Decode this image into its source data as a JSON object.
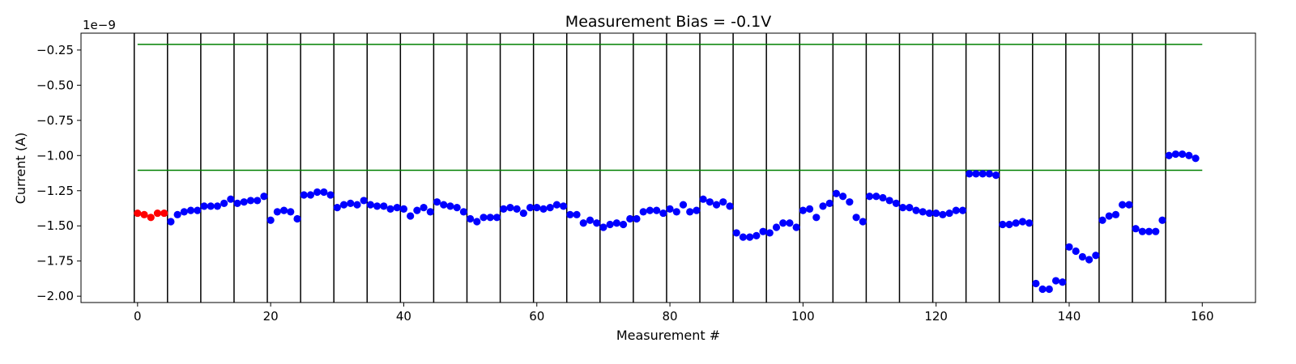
{
  "chart_data": {
    "type": "scatter",
    "title": "Measurement Bias = -0.1V",
    "xlabel": "Measurement #",
    "ylabel": "Current (A)",
    "y_offset_label": "1e−9",
    "xlim": [
      -8.5,
      168
    ],
    "ylim": [
      -2.045,
      -0.13
    ],
    "x_ticks": [
      0,
      20,
      40,
      60,
      80,
      100,
      120,
      140,
      160
    ],
    "x_tick_labels": [
      "0",
      "20",
      "40",
      "60",
      "80",
      "100",
      "120",
      "140",
      "160"
    ],
    "y_ticks": [
      -0.25,
      -0.5,
      -0.75,
      -1.0,
      -1.25,
      -1.5,
      -1.75,
      -2.0
    ],
    "y_tick_labels": [
      "−0.25",
      "−0.50",
      "−0.75",
      "−1.00",
      "−1.25",
      "−1.50",
      "−1.75",
      "−2.00"
    ],
    "grid": false,
    "reference_lines": [
      {
        "y": -0.21,
        "x_range": [
          0,
          160
        ],
        "color": "#008000"
      },
      {
        "y": -1.105,
        "x_range": [
          0,
          160
        ],
        "color": "#008000"
      }
    ],
    "vertical_lines": {
      "x": [
        -0.5,
        4.5,
        9.5,
        14.5,
        19.5,
        24.5,
        29.5,
        34.5,
        39.5,
        44.5,
        49.5,
        54.5,
        59.5,
        64.5,
        69.5,
        74.5,
        79.5,
        84.5,
        89.5,
        94.5,
        99.5,
        104.5,
        109.5,
        114.5,
        119.5,
        124.5,
        129.5,
        134.5,
        139.5,
        144.5,
        149.5,
        154.5
      ],
      "color": "#000000"
    },
    "series": [
      {
        "color": "#ff0000",
        "x": [
          0,
          1,
          2,
          3,
          4
        ],
        "y": [
          -1.41,
          -1.42,
          -1.44,
          -1.41,
          -1.41
        ]
      },
      {
        "color": "#0000ff",
        "x": [
          5,
          6,
          7,
          8,
          9,
          10,
          11,
          12,
          13,
          14,
          15,
          16,
          17,
          18,
          19,
          20,
          21,
          22,
          23,
          24,
          25,
          26,
          27,
          28,
          29,
          30,
          31,
          32,
          33,
          34,
          35,
          36,
          37,
          38,
          39,
          40,
          41,
          42,
          43,
          44,
          45,
          46,
          47,
          48,
          49,
          50,
          51,
          52,
          53,
          54,
          55,
          56,
          57,
          58,
          59,
          60,
          61,
          62,
          63,
          64,
          65,
          66,
          67,
          68,
          69,
          70,
          71,
          72,
          73,
          74,
          75,
          76,
          77,
          78,
          79,
          80,
          81,
          82,
          83,
          84,
          85,
          86,
          87,
          88,
          89,
          90,
          91,
          92,
          93,
          94,
          95,
          96,
          97,
          98,
          99,
          100,
          101,
          102,
          103,
          104,
          105,
          106,
          107,
          108,
          109,
          110,
          111,
          112,
          113,
          114,
          115,
          116,
          117,
          118,
          119,
          120,
          121,
          122,
          123,
          124,
          125,
          126,
          127,
          128,
          129,
          130,
          131,
          132,
          133,
          134,
          135,
          136,
          137,
          138,
          139,
          140,
          141,
          142,
          143,
          144,
          145,
          146,
          147,
          148,
          149,
          150,
          151,
          152,
          153,
          154,
          155,
          156,
          157,
          158,
          159
        ],
        "y": [
          -1.47,
          -1.42,
          -1.4,
          -1.39,
          -1.39,
          -1.36,
          -1.36,
          -1.36,
          -1.34,
          -1.31,
          -1.34,
          -1.33,
          -1.32,
          -1.32,
          -1.29,
          -1.46,
          -1.4,
          -1.39,
          -1.4,
          -1.45,
          -1.28,
          -1.28,
          -1.26,
          -1.26,
          -1.28,
          -1.37,
          -1.35,
          -1.34,
          -1.35,
          -1.32,
          -1.35,
          -1.36,
          -1.36,
          -1.38,
          -1.37,
          -1.38,
          -1.43,
          -1.39,
          -1.37,
          -1.4,
          -1.33,
          -1.35,
          -1.36,
          -1.37,
          -1.4,
          -1.45,
          -1.47,
          -1.44,
          -1.44,
          -1.44,
          -1.38,
          -1.37,
          -1.38,
          -1.41,
          -1.37,
          -1.37,
          -1.38,
          -1.37,
          -1.35,
          -1.36,
          -1.42,
          -1.42,
          -1.48,
          -1.46,
          -1.48,
          -1.51,
          -1.49,
          -1.48,
          -1.49,
          -1.45,
          -1.45,
          -1.4,
          -1.39,
          -1.39,
          -1.41,
          -1.38,
          -1.4,
          -1.35,
          -1.4,
          -1.39,
          -1.31,
          -1.33,
          -1.35,
          -1.33,
          -1.36,
          -1.55,
          -1.58,
          -1.58,
          -1.57,
          -1.54,
          -1.55,
          -1.51,
          -1.48,
          -1.48,
          -1.51,
          -1.39,
          -1.38,
          -1.44,
          -1.36,
          -1.34,
          -1.27,
          -1.29,
          -1.33,
          -1.44,
          -1.47,
          -1.29,
          -1.29,
          -1.3,
          -1.32,
          -1.34,
          -1.37,
          -1.37,
          -1.39,
          -1.4,
          -1.41,
          -1.41,
          -1.42,
          -1.41,
          -1.39,
          -1.39,
          -1.13,
          -1.13,
          -1.13,
          -1.13,
          -1.14,
          -1.49,
          -1.49,
          -1.48,
          -1.47,
          -1.48,
          -1.91,
          -1.95,
          -1.95,
          -1.89,
          -1.9,
          -1.65,
          -1.68,
          -1.72,
          -1.74,
          -1.71,
          -1.46,
          -1.43,
          -1.42,
          -1.35,
          -1.35,
          -1.52,
          -1.54,
          -1.54,
          -1.54,
          -1.46,
          -1.0,
          -0.99,
          -0.99,
          -1.0,
          -1.02
        ]
      }
    ]
  }
}
